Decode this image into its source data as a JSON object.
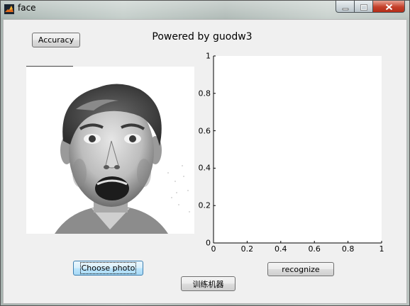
{
  "window": {
    "title": "face",
    "controls": [
      "minimize-icon",
      "maximize-icon",
      "close-icon"
    ]
  },
  "header": {
    "accuracy_label": "Accuracy",
    "powered_by": "Powered by guodw3"
  },
  "photo": {
    "subject": "grayscale face photo"
  },
  "chart_data": {
    "type": "line",
    "title": "",
    "xlabel": "",
    "ylabel": "",
    "xlim": [
      0,
      1
    ],
    "ylim": [
      0,
      1
    ],
    "x_ticks": [
      "0",
      "0.2",
      "0.4",
      "0.6",
      "0.8",
      "1"
    ],
    "y_ticks": [
      "0",
      "0.2",
      "0.4",
      "0.6",
      "0.8",
      "1"
    ],
    "series": [],
    "grid": false
  },
  "buttons": {
    "choose_photo": "Choose photo",
    "recognize": "recognize",
    "train": "训练机器"
  }
}
